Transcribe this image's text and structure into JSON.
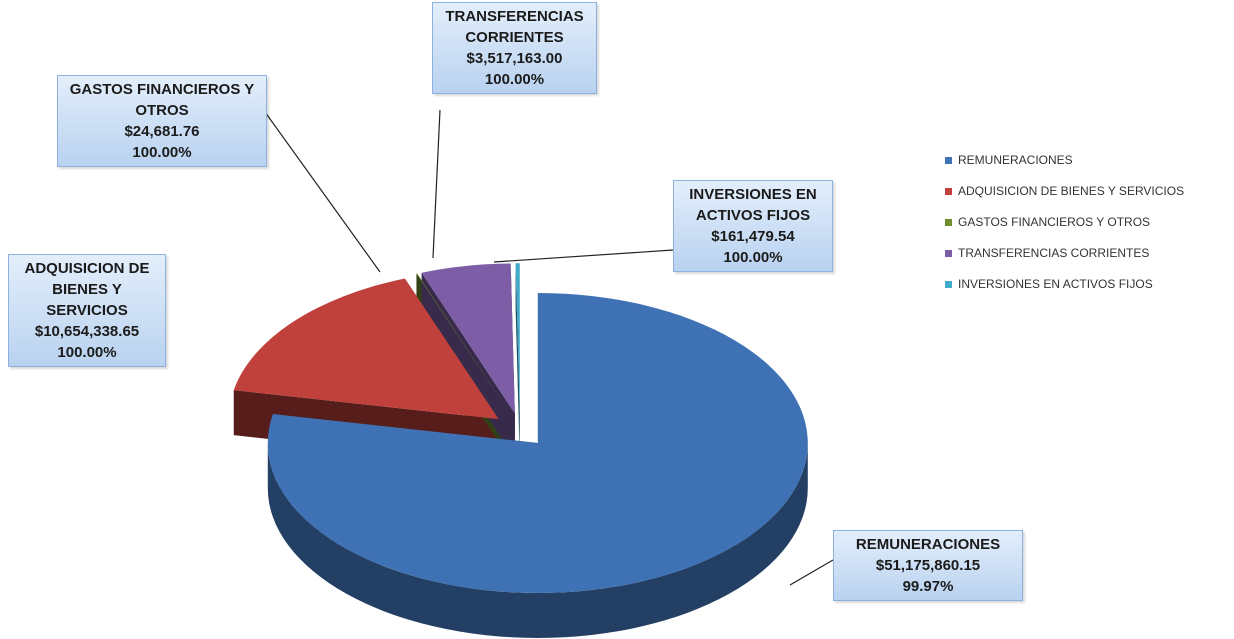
{
  "chart_data": {
    "type": "pie3d",
    "categories": [
      "REMUNERACIONES",
      "ADQUISICION DE BIENES Y SERVICIOS",
      "GASTOS FINANCIEROS Y OTROS",
      "TRANSFERENCIAS CORRIENTES",
      "INVERSIONES EN ACTIVOS FIJOS"
    ],
    "values": [
      51175860.15,
      10654338.65,
      24681.76,
      3517163.0,
      161479.54
    ],
    "value_labels": [
      "$51,175,860.15",
      "$10,654,338.65",
      "$24,681.76",
      "$3,517,163.00",
      "$161,479.54"
    ],
    "percentages": [
      99.97,
      100.0,
      100.0,
      100.0,
      100.0
    ],
    "percentage_labels": [
      "99.97%",
      "100.00%",
      "100.00%",
      "100.00%",
      "100.00%"
    ],
    "colors": [
      "#3f72b5",
      "#c0403b",
      "#6f8e2e",
      "#7d5ea6",
      "#41a9c9"
    ],
    "legend": "right"
  }
}
